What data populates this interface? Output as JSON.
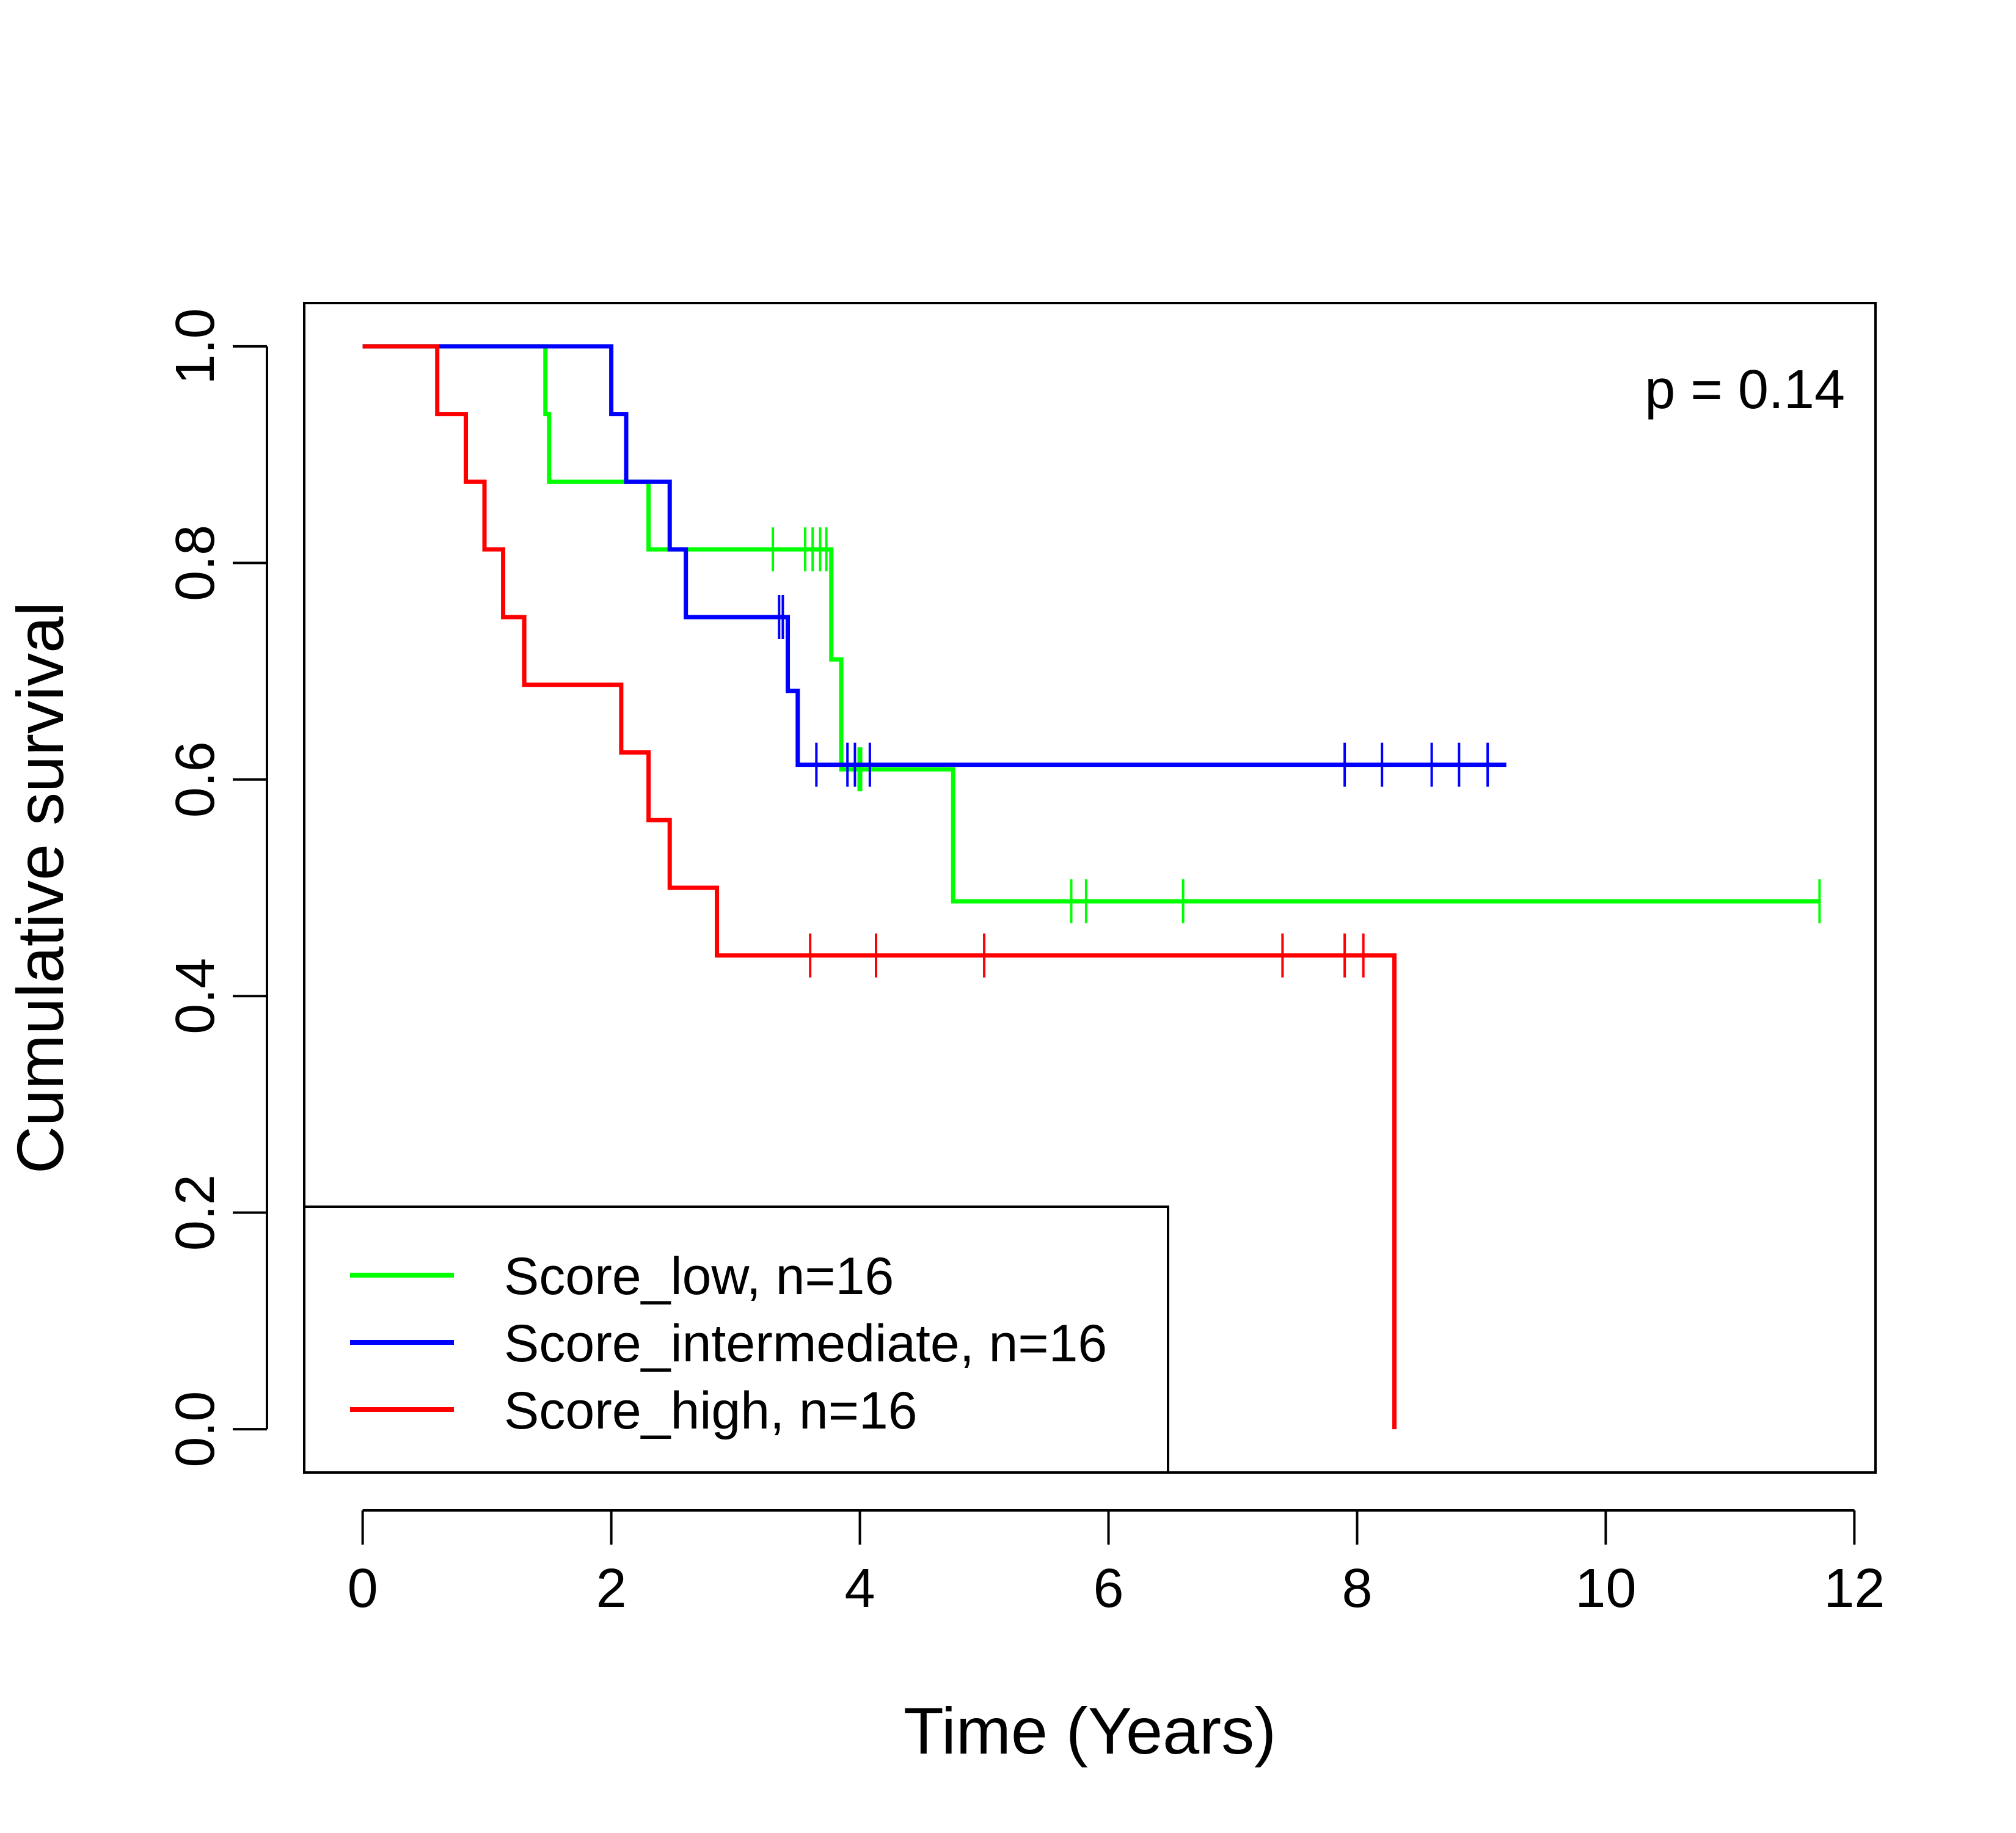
{
  "chart_data": {
    "type": "line",
    "subtype": "kaplan-meier",
    "title": "",
    "xlabel": "Time (Years)",
    "ylabel": "Cumulative survival",
    "xlim": [
      -0.47,
      12.17
    ],
    "ylim": [
      -0.04,
      1.04
    ],
    "xticks": [
      0,
      2,
      4,
      6,
      8,
      10,
      12
    ],
    "yticks": [
      0.0,
      0.2,
      0.4,
      0.6,
      0.8,
      1.0
    ],
    "xtick_labels": [
      "0",
      "2",
      "4",
      "6",
      "8",
      "10",
      "12"
    ],
    "ytick_labels": [
      "0.0",
      "0.2",
      "0.4",
      "0.6",
      "0.8",
      "1.0"
    ],
    "grid": false,
    "legend_position": "bottom-left",
    "annotation": "p = 0.14",
    "series": [
      {
        "name": "Score_low, n=16",
        "color": "#00ff00",
        "steps": [
          [
            0,
            1.0
          ],
          [
            1.47,
            0.9375
          ],
          [
            1.5,
            0.875
          ],
          [
            2.3,
            0.8125
          ],
          [
            3.77,
            0.7109
          ],
          [
            3.85,
            0.6094
          ],
          [
            4.75,
            0.4875
          ]
        ],
        "end_time": 11.72,
        "censored": [
          [
            3.3,
            0.8125
          ],
          [
            3.56,
            0.8125
          ],
          [
            3.62,
            0.8125
          ],
          [
            3.68,
            0.8125
          ],
          [
            3.73,
            0.8125
          ],
          [
            3.99,
            0.6094
          ],
          [
            4.01,
            0.6094
          ],
          [
            5.7,
            0.4875
          ],
          [
            5.82,
            0.4875
          ],
          [
            6.6,
            0.4875
          ],
          [
            11.72,
            0.4875
          ]
        ]
      },
      {
        "name": "Score_intermediate, n=16",
        "color": "#0000ff",
        "steps": [
          [
            0,
            1.0
          ],
          [
            2.0,
            0.9375
          ],
          [
            2.12,
            0.875
          ],
          [
            2.47,
            0.8125
          ],
          [
            2.6,
            0.75
          ],
          [
            3.42,
            0.6818
          ],
          [
            3.5,
            0.6136
          ]
        ],
        "end_time": 9.2,
        "censored": [
          [
            3.35,
            0.75
          ],
          [
            3.38,
            0.75
          ],
          [
            3.65,
            0.6136
          ],
          [
            3.9,
            0.6136
          ],
          [
            3.96,
            0.6136
          ],
          [
            4.08,
            0.6136
          ],
          [
            7.9,
            0.6136
          ],
          [
            8.2,
            0.6136
          ],
          [
            8.6,
            0.6136
          ],
          [
            8.82,
            0.6136
          ],
          [
            9.05,
            0.6136
          ]
        ]
      },
      {
        "name": "Score_high, n=16",
        "color": "#ff0000",
        "steps": [
          [
            0,
            1.0
          ],
          [
            0.6,
            0.9375
          ],
          [
            0.83,
            0.875
          ],
          [
            0.98,
            0.8125
          ],
          [
            1.13,
            0.75
          ],
          [
            1.3,
            0.6875
          ],
          [
            2.08,
            0.625
          ],
          [
            2.3,
            0.5625
          ],
          [
            2.47,
            0.5
          ],
          [
            2.85,
            0.4375
          ],
          [
            8.3,
            0.0
          ]
        ],
        "end_time": 8.3,
        "censored": [
          [
            3.6,
            0.4375
          ],
          [
            4.13,
            0.4375
          ],
          [
            5.0,
            0.4375
          ],
          [
            7.4,
            0.4375
          ],
          [
            7.9,
            0.4375
          ],
          [
            8.05,
            0.4375
          ]
        ]
      }
    ]
  }
}
